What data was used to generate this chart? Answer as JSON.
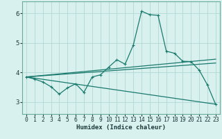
{
  "xlabel": "Humidex (Indice chaleur)",
  "background_color": "#d8f0ee",
  "grid_color": "#b0d8d4",
  "line_color": "#1a7a6e",
  "spine_color": "#6aaa99",
  "xlim": [
    -0.5,
    23.5
  ],
  "ylim": [
    2.6,
    6.4
  ],
  "yticks": [
    3,
    4,
    5,
    6
  ],
  "xticks": [
    0,
    1,
    2,
    3,
    4,
    5,
    6,
    7,
    8,
    9,
    10,
    11,
    12,
    13,
    14,
    15,
    16,
    17,
    18,
    19,
    20,
    21,
    22,
    23
  ],
  "series1_x": [
    0,
    1,
    2,
    3,
    4,
    5,
    6,
    7,
    8,
    9,
    10,
    11,
    12,
    13,
    14,
    15,
    16,
    17,
    18,
    19,
    20,
    21,
    22,
    23
  ],
  "series1_y": [
    3.85,
    3.78,
    3.68,
    3.52,
    3.27,
    3.48,
    3.62,
    3.33,
    3.85,
    3.92,
    4.18,
    4.43,
    4.28,
    4.93,
    6.07,
    5.95,
    5.93,
    4.72,
    4.65,
    4.38,
    4.37,
    4.08,
    3.58,
    2.92
  ],
  "series2_x": [
    0,
    23
  ],
  "series2_y": [
    3.85,
    2.93
  ],
  "series3_x": [
    0,
    23
  ],
  "series3_y": [
    3.85,
    4.32
  ],
  "series4_x": [
    0,
    23
  ],
  "series4_y": [
    3.85,
    4.45
  ]
}
